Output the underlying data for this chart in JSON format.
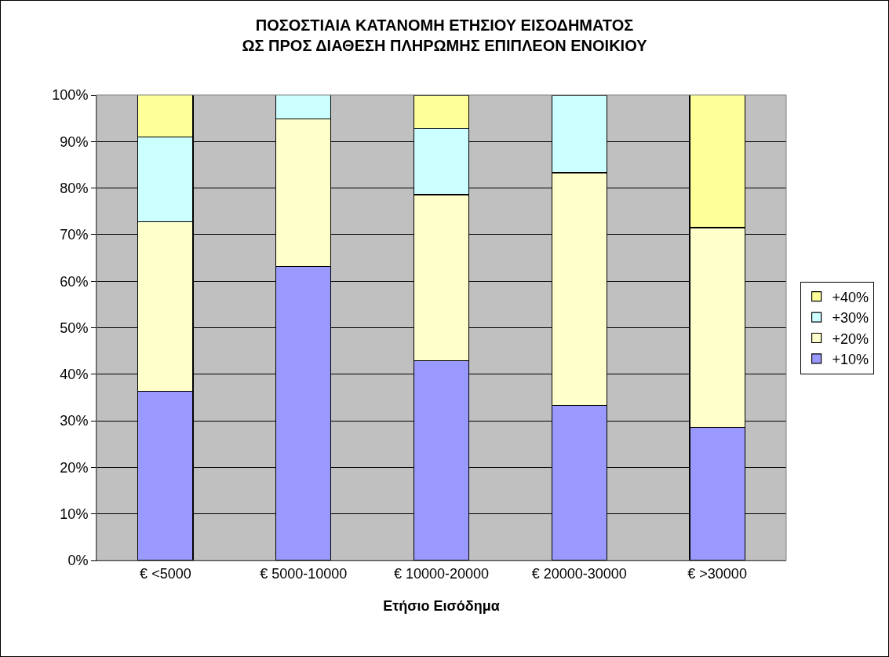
{
  "chart_data": {
    "type": "bar",
    "title": "ΠΟΣΟΣΤΙΑΙΑ ΚΑΤΑΝΟΜΗ ΕΤΗΣΙΟΥ ΕΙΣΟΔΗΜΑΤΟΣ ΩΣ ΠΡΟΣ ΔΙΑΘΕΣΗ ΠΛΗΡΩΜΗΣ ΕΠΙΠΛΕΟΝ ΕΝΟΙΚΙΟΥ",
    "xlabel": "Ετήσιο Εισόδημα",
    "categories": [
      "€ <5000",
      "€ 5000-10000",
      "€ 10000-20000",
      "€ 20000-30000",
      "€ >30000"
    ],
    "stacked": true,
    "series": [
      {
        "name": "+10%",
        "color": "#9999ff",
        "values": [
          36.4,
          63.2,
          42.9,
          33.3,
          28.6
        ]
      },
      {
        "name": "+20%",
        "color": "#ffffcc",
        "values": [
          36.4,
          31.6,
          35.7,
          50.0,
          42.9
        ]
      },
      {
        "name": "+30%",
        "color": "#ccffff",
        "values": [
          18.2,
          5.3,
          14.3,
          16.7,
          null
        ]
      },
      {
        "name": "+40%",
        "color": "#ffff99",
        "values": [
          9.1,
          null,
          7.1,
          null,
          28.6
        ]
      }
    ],
    "ylim": [
      0,
      100
    ],
    "yticks": [
      {
        "value": 0,
        "label": "0%"
      },
      {
        "value": 10,
        "label": "10%"
      },
      {
        "value": 20,
        "label": "20%"
      },
      {
        "value": 30,
        "label": "30%"
      },
      {
        "value": 40,
        "label": "40%"
      },
      {
        "value": 50,
        "label": "50%"
      },
      {
        "value": 60,
        "label": "60%"
      },
      {
        "value": 70,
        "label": "70%"
      },
      {
        "value": 80,
        "label": "80%"
      },
      {
        "value": 90,
        "label": "90%"
      },
      {
        "value": 100,
        "label": "100%"
      }
    ],
    "grid": "y",
    "legend": "right"
  }
}
